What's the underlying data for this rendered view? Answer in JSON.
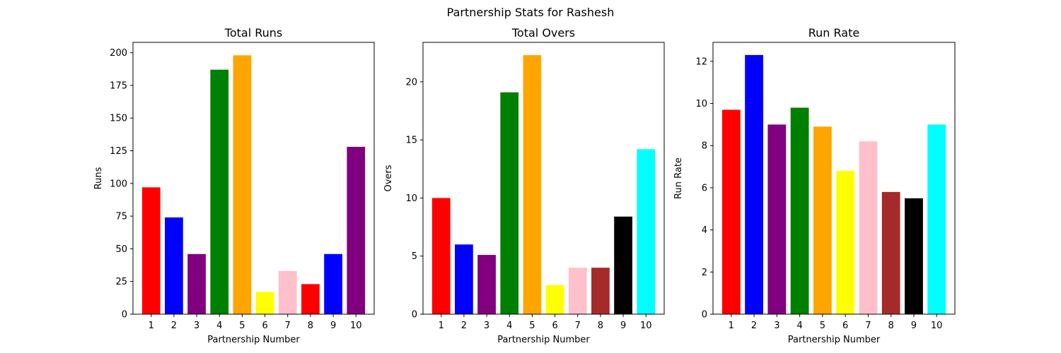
{
  "figure": {
    "title": "Partnership Stats for Rashesh"
  },
  "chart_data": [
    {
      "type": "bar",
      "title": "Total Runs",
      "xlabel": "Partnership Number",
      "ylabel": "Runs",
      "categories": [
        "1",
        "2",
        "3",
        "4",
        "5",
        "6",
        "7",
        "8",
        "9",
        "10"
      ],
      "values": [
        97,
        74,
        46,
        187,
        198,
        17,
        33,
        23,
        46,
        128
      ],
      "colors": [
        "#ff0000",
        "#0000ff",
        "#800080",
        "#008000",
        "#ffa500",
        "#ffff00",
        "#ffc0cb",
        "#ff0000",
        "#0000ff",
        "#800080"
      ],
      "ylim": [
        0,
        207.9
      ],
      "yticks": [
        0,
        25,
        50,
        75,
        100,
        125,
        150,
        175,
        200
      ],
      "grid": false
    },
    {
      "type": "bar",
      "title": "Total Overs",
      "xlabel": "Partnership Number",
      "ylabel": "Overs",
      "categories": [
        "1",
        "2",
        "3",
        "4",
        "5",
        "6",
        "7",
        "8",
        "9",
        "10"
      ],
      "values": [
        10,
        6,
        5.1,
        19.1,
        22.3,
        2.5,
        4,
        4,
        8.4,
        14.2
      ],
      "colors": [
        "#ff0000",
        "#0000ff",
        "#800080",
        "#008000",
        "#ffa500",
        "#ffff00",
        "#ffc0cb",
        "#a52a2a",
        "#000000",
        "#00ffff"
      ],
      "ylim": [
        0,
        23.4
      ],
      "yticks": [
        0,
        5,
        10,
        15,
        20
      ],
      "grid": false
    },
    {
      "type": "bar",
      "title": "Run Rate",
      "xlabel": "Partnership Number",
      "ylabel": "Run Rate",
      "categories": [
        "1",
        "2",
        "3",
        "4",
        "5",
        "6",
        "7",
        "8",
        "9",
        "10"
      ],
      "values": [
        9.7,
        12.3,
        9.0,
        9.8,
        8.9,
        6.8,
        8.2,
        5.8,
        5.5,
        9.0
      ],
      "colors": [
        "#ff0000",
        "#0000ff",
        "#800080",
        "#008000",
        "#ffa500",
        "#ffff00",
        "#ffc0cb",
        "#a52a2a",
        "#000000",
        "#00ffff"
      ],
      "ylim": [
        0,
        12.9
      ],
      "yticks": [
        0,
        2,
        4,
        6,
        8,
        10,
        12
      ],
      "grid": false
    }
  ]
}
